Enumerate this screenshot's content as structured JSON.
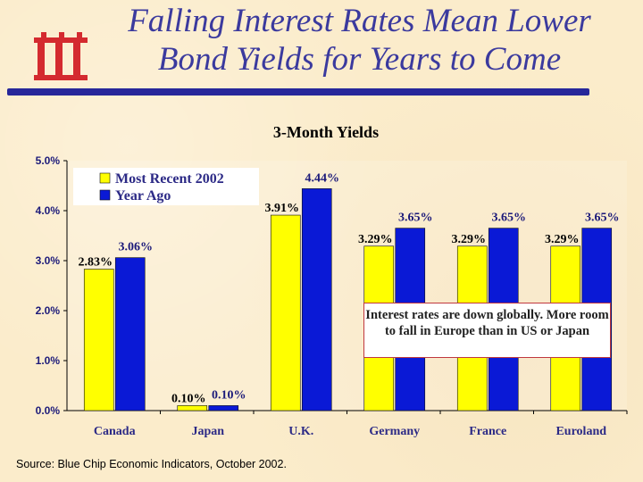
{
  "slide": {
    "title_line1": "Falling Interest Rates Mean Lower",
    "title_line2": "Bond Yields for Years to Come",
    "source": "Source:  Blue Chip Economic Indicators, October 2002.",
    "logo_icon": "iii-logo-icon",
    "colors": {
      "title": "#3b3a9e",
      "rule": "#27279a",
      "logo": "#d42a2f",
      "recent": "#ffff00",
      "year_ago": "#0a19d6"
    }
  },
  "chart_data": {
    "type": "bar",
    "title": "3-Month Yields",
    "categories": [
      "Canada",
      "Japan",
      "U.K.",
      "Germany",
      "France",
      "Euroland"
    ],
    "series": [
      {
        "name": "Most Recent 2002",
        "color": "#ffff00",
        "values": [
          2.83,
          0.1,
          3.91,
          3.29,
          3.29,
          3.29
        ],
        "labels": [
          "2.83%",
          "0.10%",
          "3.91%",
          "3.29%",
          "3.29%",
          "3.29%"
        ]
      },
      {
        "name": "Year Ago",
        "color": "#0a19d6",
        "values": [
          3.06,
          0.1,
          4.44,
          3.65,
          3.65,
          3.65
        ],
        "labels": [
          "3.06%",
          "0.10%",
          "4.44%",
          "3.65%",
          "3.65%",
          "3.65%"
        ]
      }
    ],
    "ylim": [
      0,
      5
    ],
    "yticks": [
      "0.0%",
      "1.0%",
      "2.0%",
      "3.0%",
      "4.0%",
      "5.0%"
    ],
    "xlabel": "",
    "ylabel": "",
    "legend_position": "top-left",
    "annotation": "Interest rates are down globally. More room to fall in Europe than in US or Japan"
  }
}
